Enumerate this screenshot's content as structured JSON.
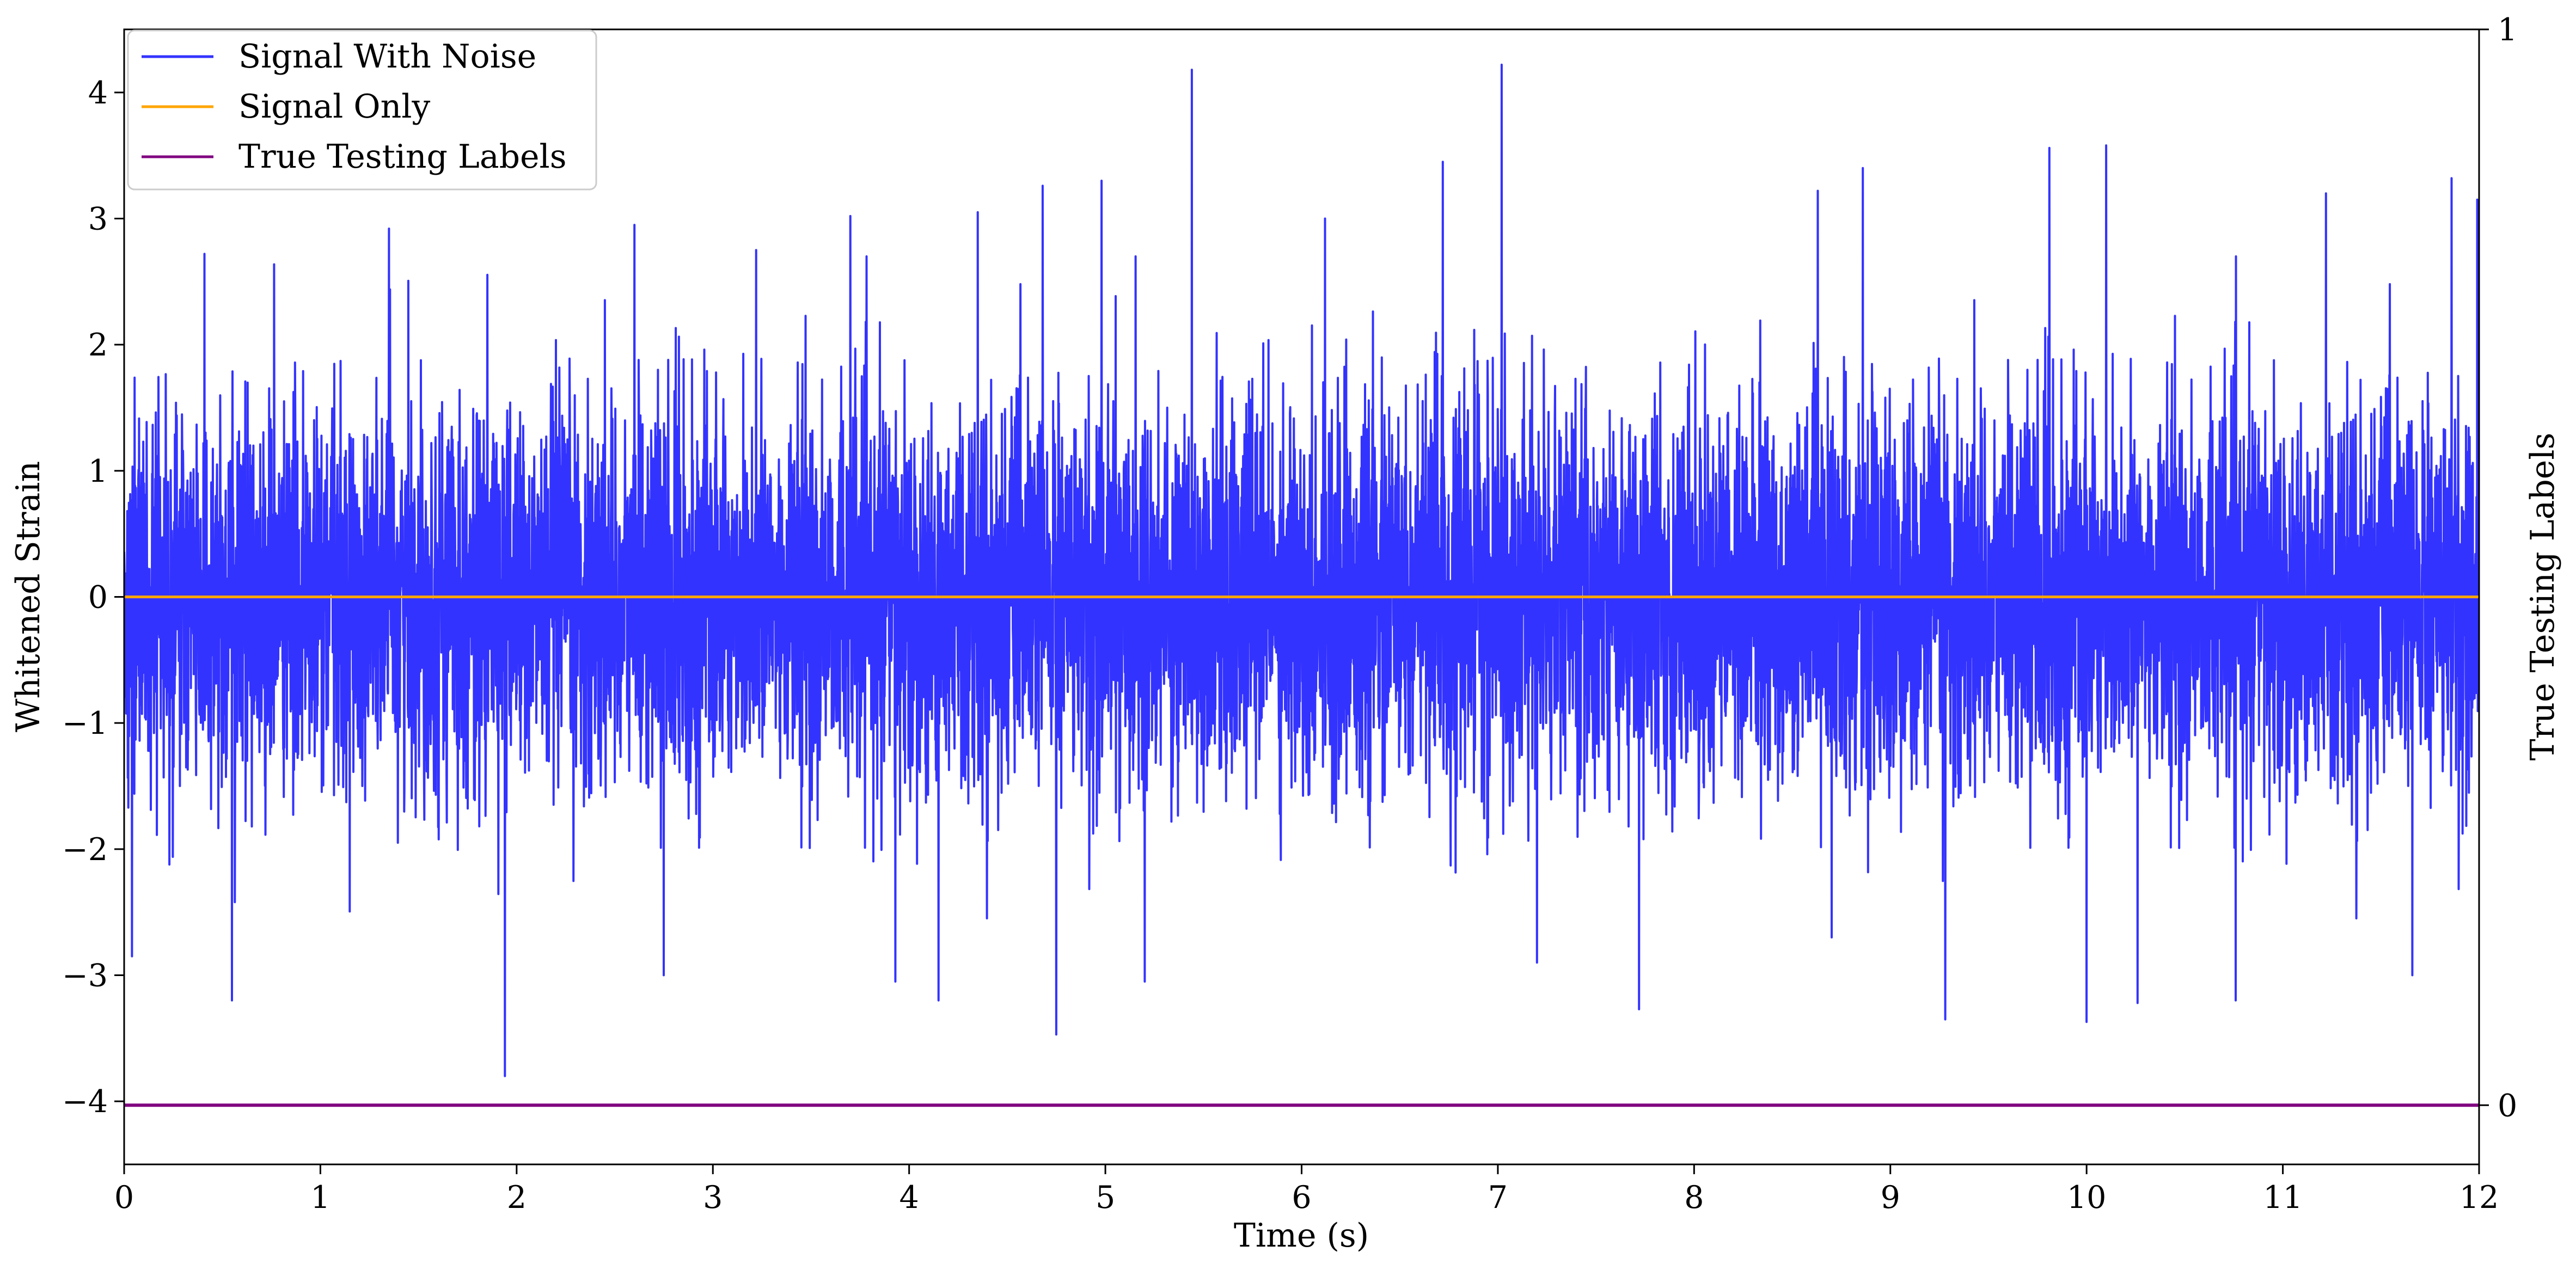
{
  "chart_data": {
    "type": "line",
    "title": "",
    "xlabel": "Time (s)",
    "ylabel": "Whitened Strain",
    "y2label": "True Testing Labels",
    "xlim": [
      0,
      12
    ],
    "ylim": [
      -4.5,
      4.5
    ],
    "y2lim": [
      -0.055,
      1
    ],
    "x_ticks": [
      0,
      1,
      2,
      3,
      4,
      5,
      6,
      7,
      8,
      9,
      10,
      11,
      12
    ],
    "y_ticks": [
      -4,
      -3,
      -2,
      -1,
      0,
      1,
      2,
      3,
      4
    ],
    "y2_ticks": [
      0,
      1
    ],
    "grid": false,
    "legend_position": "upper-left",
    "series": [
      {
        "name": "Signal With Noise",
        "axis": "left",
        "color": "#3333ff",
        "description_values": "dense noise oscillating roughly between -2 and 2",
        "noise_std": 0.75,
        "peaks": [
          {
            "x": 0.04,
            "y": -2.85
          },
          {
            "x": 0.55,
            "y": -3.2
          },
          {
            "x": 0.41,
            "y": 2.72
          },
          {
            "x": 1.35,
            "y": 2.92
          },
          {
            "x": 1.94,
            "y": -3.8
          },
          {
            "x": 2.6,
            "y": 2.95
          },
          {
            "x": 2.75,
            "y": -3.0
          },
          {
            "x": 3.22,
            "y": 2.75
          },
          {
            "x": 3.7,
            "y": 3.02
          },
          {
            "x": 3.93,
            "y": -3.05
          },
          {
            "x": 4.15,
            "y": -3.2
          },
          {
            "x": 4.35,
            "y": 3.05
          },
          {
            "x": 4.68,
            "y": 3.26
          },
          {
            "x": 4.75,
            "y": -3.47
          },
          {
            "x": 4.98,
            "y": 3.3
          },
          {
            "x": 5.2,
            "y": -3.05
          },
          {
            "x": 5.44,
            "y": 4.18
          },
          {
            "x": 6.12,
            "y": 3.0
          },
          {
            "x": 6.72,
            "y": 3.45
          },
          {
            "x": 7.02,
            "y": 4.22
          },
          {
            "x": 7.2,
            "y": -2.9
          },
          {
            "x": 7.72,
            "y": -3.27
          },
          {
            "x": 8.63,
            "y": 3.22
          },
          {
            "x": 8.86,
            "y": 3.4
          },
          {
            "x": 9.28,
            "y": -3.35
          },
          {
            "x": 9.81,
            "y": 3.56
          },
          {
            "x": 10.0,
            "y": -3.37
          },
          {
            "x": 10.1,
            "y": 3.58
          },
          {
            "x": 10.26,
            "y": -3.22
          },
          {
            "x": 10.76,
            "y": -3.2
          },
          {
            "x": 11.22,
            "y": 3.2
          },
          {
            "x": 11.66,
            "y": -3.0
          },
          {
            "x": 11.86,
            "y": 3.32
          },
          {
            "x": 11.99,
            "y": 3.15
          }
        ]
      },
      {
        "name": "Signal Only",
        "axis": "left",
        "color": "#ffa500",
        "x": [
          0,
          12
        ],
        "y": [
          0,
          0
        ]
      },
      {
        "name": "True Testing Labels",
        "axis": "right",
        "color": "#800080",
        "x": [
          0,
          12
        ],
        "y": [
          0,
          0
        ]
      }
    ]
  }
}
